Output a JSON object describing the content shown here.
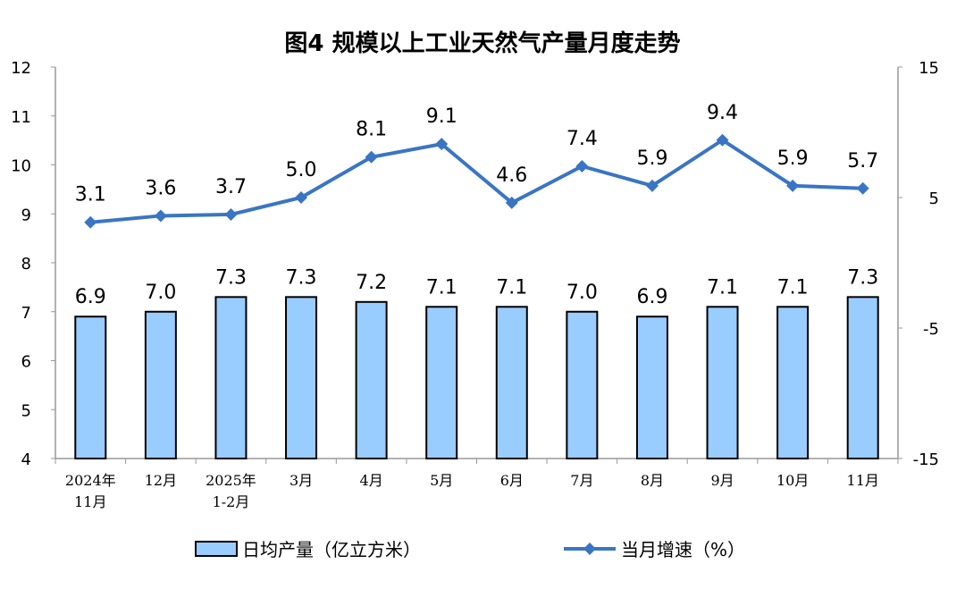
{
  "chart_data": {
    "type": "bar+line",
    "title": "图4  规模以上工业天然气产量月度走势",
    "categories": [
      [
        "2024年",
        "11月"
      ],
      [
        "12月"
      ],
      [
        "2025年",
        "1-2月"
      ],
      [
        "3月"
      ],
      [
        "4月"
      ],
      [
        "5月"
      ],
      [
        "6月"
      ],
      [
        "7月"
      ],
      [
        "8月"
      ],
      [
        "9月"
      ],
      [
        "10月"
      ],
      [
        "11月"
      ]
    ],
    "series": [
      {
        "name": "日均产量（亿立方米）",
        "type": "bar",
        "axis": "left",
        "color": "#99CCFF",
        "values": [
          6.9,
          7.0,
          7.3,
          7.3,
          7.2,
          7.1,
          7.1,
          7.0,
          6.9,
          7.1,
          7.1,
          7.3
        ]
      },
      {
        "name": "当月增速（%）",
        "type": "line",
        "axis": "right",
        "color": "#3A75C4",
        "values": [
          3.1,
          3.6,
          3.7,
          5.0,
          8.1,
          9.1,
          4.6,
          7.4,
          5.9,
          9.4,
          5.9,
          5.7
        ]
      }
    ],
    "y_left": {
      "range": [
        4,
        12
      ],
      "ticks": [
        4,
        5,
        6,
        7,
        8,
        9,
        10,
        11,
        12
      ]
    },
    "y_right": {
      "range": [
        -15,
        15
      ],
      "ticks": [
        -15,
        -5,
        5,
        15
      ]
    },
    "grid": false,
    "legend": "bottom"
  }
}
